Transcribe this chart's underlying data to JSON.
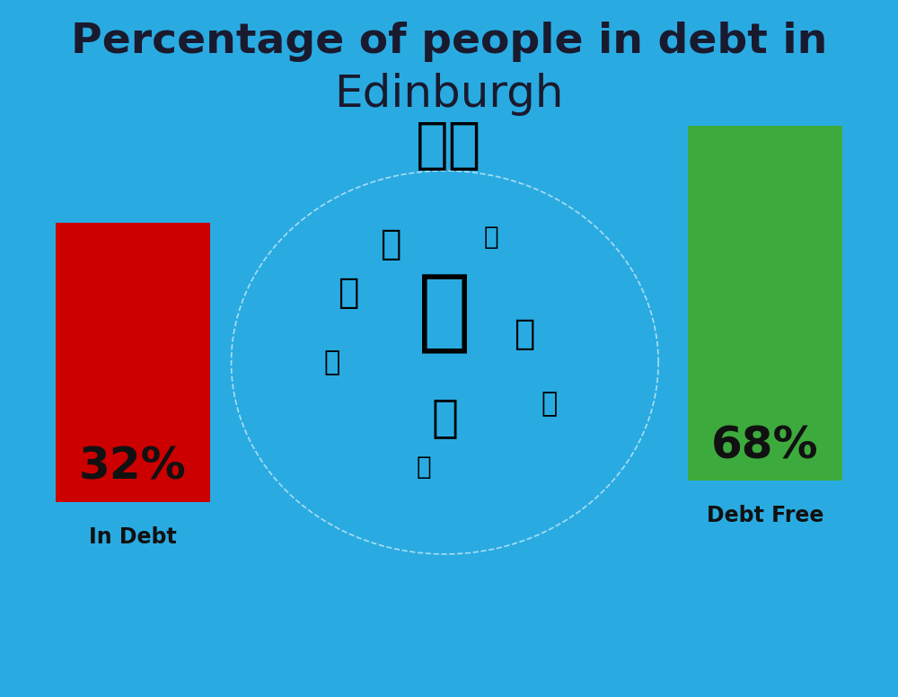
{
  "title_line1": "Percentage of people in debt in",
  "title_line2": "Edinburgh",
  "flag_emoji": "🇬🇧",
  "background_color": "#29ABE2",
  "bar1_value": 32,
  "bar1_label": "32%",
  "bar1_color": "#CC0000",
  "bar1_text": "In Debt",
  "bar2_value": 68,
  "bar2_label": "68%",
  "bar2_color": "#3DAA3D",
  "bar2_text": "Debt Free",
  "title_fontsize": 34,
  "title2_fontsize": 36,
  "bar_label_fontsize": 36,
  "bar_text_fontsize": 17,
  "title_color": "#1a1a2e",
  "bar_label_color": "#111111",
  "bar_text_color": "#111111"
}
